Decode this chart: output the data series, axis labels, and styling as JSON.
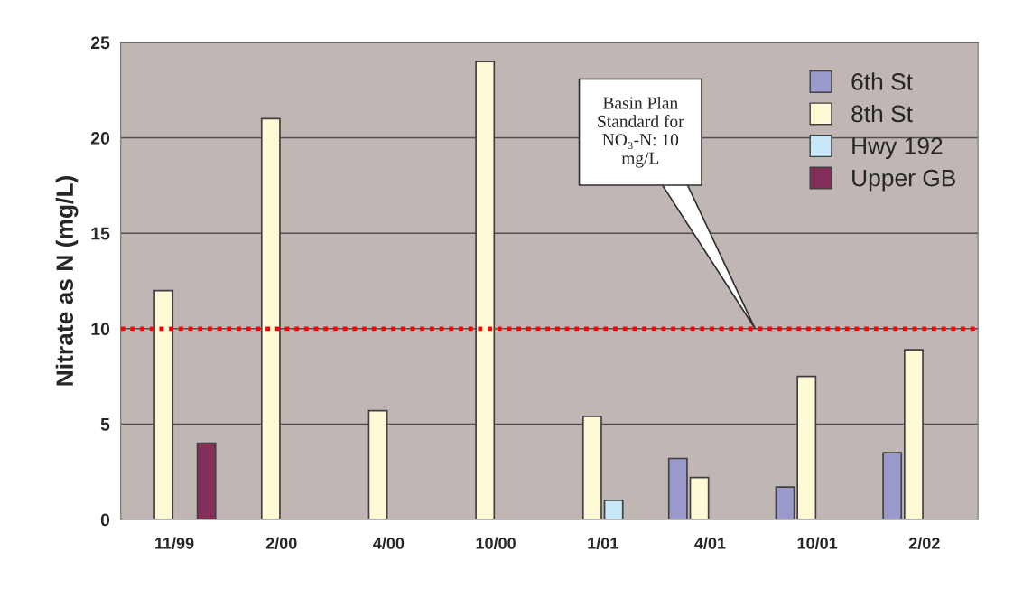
{
  "chart_data": {
    "type": "bar",
    "ylabel": "Nitrate as N (mg/L)",
    "categories": [
      "11/99",
      "2/00",
      "4/00",
      "10/00",
      "1/01",
      "4/01",
      "10/01",
      "2/02"
    ],
    "series": [
      {
        "name": "6th St",
        "color": "#9999cc",
        "values": [
          null,
          null,
          null,
          null,
          null,
          3.2,
          1.7,
          3.5
        ]
      },
      {
        "name": "8th St",
        "color": "#fffad6",
        "values": [
          12,
          21,
          5.7,
          24,
          5.4,
          2.2,
          7.5,
          8.9
        ]
      },
      {
        "name": "Hwy 192",
        "color": "#c6e8f8",
        "values": [
          null,
          null,
          null,
          null,
          1.0,
          null,
          null,
          null
        ]
      },
      {
        "name": "Upper GB",
        "color": "#842f5a",
        "values": [
          4.0,
          null,
          null,
          null,
          null,
          null,
          null,
          null
        ]
      }
    ],
    "ylim": [
      0,
      25
    ],
    "yticks": [
      0,
      5,
      10,
      15,
      20,
      25
    ],
    "grid": "y",
    "legend": "top right",
    "annotations": [
      "Basin Plan\nStandard for\nNO₃-N: 10\nmg/L"
    ],
    "ref_lines": [
      {
        "axis": "y",
        "value": 10,
        "color": "#ff0000",
        "line_style": "dotted"
      }
    ]
  }
}
